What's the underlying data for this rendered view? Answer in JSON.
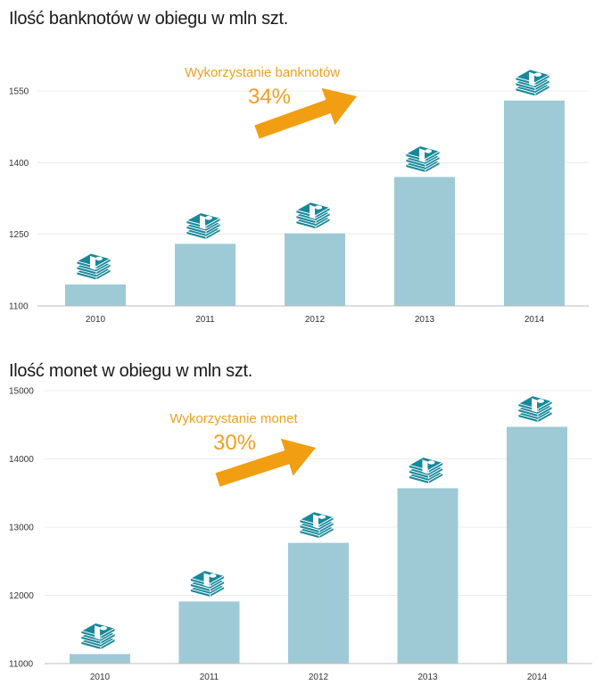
{
  "colors": {
    "bar": "#9ecad6",
    "icon": "#17889a",
    "arrow": "#f29e12",
    "grid": "#ececec",
    "axis": "#bdbdbd"
  },
  "chart_data": [
    {
      "type": "bar",
      "title": "Ilość banknotów w obiegu w mln szt.",
      "categories": [
        "2010",
        "2011",
        "2012",
        "2013",
        "2014"
      ],
      "values": [
        1145,
        1230,
        1252,
        1370,
        1530
      ],
      "ylim": [
        1100,
        1550
      ],
      "yticks": [
        "1100",
        "1250",
        "1400",
        "1550"
      ],
      "grid": true,
      "bar_icon": "banknote-stack-icon",
      "annotation": {
        "label": "Wykorzystanie banknotów",
        "value": "34%",
        "icon": "trend-arrow-icon"
      }
    },
    {
      "type": "bar",
      "title": "Ilość monet w obiegu w mln szt.",
      "categories": [
        "2010",
        "2011",
        "2012",
        "2013",
        "2014"
      ],
      "values": [
        11140,
        11910,
        12770,
        13570,
        14470
      ],
      "ylim": [
        11000,
        15000
      ],
      "yticks": [
        "11000",
        "12000",
        "13000",
        "14000",
        "15000"
      ],
      "grid": true,
      "bar_icon": "banknote-stack-icon",
      "annotation": {
        "label": "Wykorzystanie monet",
        "value": "30%",
        "icon": "trend-arrow-icon"
      }
    }
  ]
}
